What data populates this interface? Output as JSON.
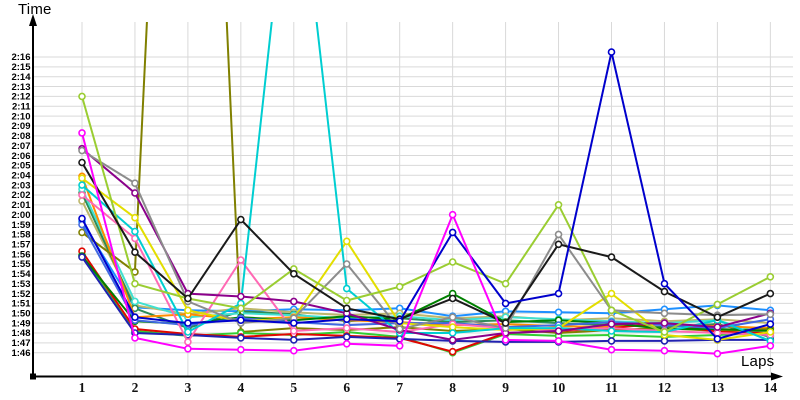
{
  "titles": {
    "y_axis": "Time",
    "x_axis": "Laps"
  },
  "chart_data": {
    "type": "line",
    "title": "",
    "xlabel": "Laps",
    "ylabel": "Time",
    "x": [
      1,
      2,
      3,
      4,
      5,
      6,
      7,
      8,
      9,
      10,
      11,
      12,
      13,
      14
    ],
    "x_tick_labels": [
      "1",
      "2",
      "3",
      "4",
      "5",
      "6",
      "7",
      "8",
      "9",
      "10",
      "11",
      "12",
      "13",
      "14"
    ],
    "y_tick_labels": [
      "2:16",
      "2:15",
      "2:14",
      "2:13",
      "2:12",
      "2:11",
      "2:10",
      "2:09",
      "2:08",
      "2:07",
      "2:06",
      "2:05",
      "2:04",
      "2:03",
      "2:02",
      "2:01",
      "2:00",
      "1:59",
      "1:58",
      "1:57",
      "1:56",
      "1:55",
      "1:54",
      "1:53",
      "1:52",
      "1:51",
      "1:50",
      "1:49",
      "1:48",
      "1:47",
      "1:46"
    ],
    "y_axis": {
      "min_label": "1:46",
      "max_label": "2:16",
      "min_seconds": 106,
      "max_seconds": 136,
      "tick_step_seconds": 1,
      "grid": true
    },
    "values_unit": "lap time in seconds (e.g. 106.3 = 1:46.3); values above 136 run off the top of the chart",
    "layout": {
      "background": "#FFFFFF",
      "grid_color": "#D9D9D9",
      "axis_color": "#000000",
      "marker_fill": "#FFFFFF",
      "legend": "none"
    },
    "series": [
      {
        "name": "dodger-blue",
        "color": "#1E90FF",
        "values": [
          119.3,
          110.6,
          110.3,
          110.2,
          110.4,
          110.3,
          110.5,
          109.7,
          110.2,
          110.1,
          110.0,
          110.4,
          110.8,
          110.3
        ]
      },
      {
        "name": "dark-khaki",
        "color": "#BDB76B",
        "values": [
          121.4,
          110.8,
          109.9,
          110.5,
          110.1,
          109.8,
          110.0,
          109.5,
          109.7,
          109.3,
          109.5,
          109.2,
          109.4,
          109.0
        ]
      },
      {
        "name": "sea-green",
        "color": "#2E8B57",
        "values": [
          122.2,
          110.5,
          108.5,
          110.2,
          109.9,
          109.2,
          109.5,
          109.1,
          109.3,
          109.0,
          108.8,
          108.6,
          108.9,
          107.6
        ]
      },
      {
        "name": "turquoise",
        "color": "#40E0D0",
        "values": [
          122.6,
          111.2,
          109.6,
          110.0,
          109.8,
          109.5,
          109.7,
          109.3,
          109.6,
          109.4,
          109.2,
          109.0,
          109.3,
          107.7
        ]
      },
      {
        "name": "orange",
        "color": "#FF8C00",
        "values": [
          123.9,
          109.6,
          109.9,
          109.4,
          109.6,
          109.3,
          109.1,
          108.8,
          108.9,
          108.7,
          108.6,
          108.9,
          108.7,
          108.5
        ]
      },
      {
        "name": "olive",
        "color": "#808000",
        "values": [
          118.2,
          114.2,
          226.0,
          108.1,
          108.5,
          108.3,
          108.6,
          108.2,
          108.4,
          108.0,
          108.3,
          108.5,
          108.2,
          108.4
        ]
      },
      {
        "name": "lime-green",
        "color": "#32CD32",
        "values": [
          115.9,
          108.2,
          107.7,
          108.0,
          107.8,
          108.1,
          107.6,
          106.0,
          107.9,
          107.7,
          107.8,
          107.6,
          107.8,
          108.0
        ]
      },
      {
        "name": "red",
        "color": "#E10600",
        "values": [
          116.3,
          108.4,
          107.9,
          107.6,
          107.9,
          107.7,
          107.5,
          106.1,
          108.0,
          108.2,
          108.5,
          109.0,
          108.1,
          108.0
        ]
      },
      {
        "name": "green",
        "color": "#008000",
        "values": [
          115.8,
          109.2,
          108.9,
          109.6,
          109.3,
          109.7,
          109.4,
          112.0,
          109.1,
          109.3,
          109.0,
          108.4,
          108.4,
          108.2
        ]
      },
      {
        "name": "royal-blue",
        "color": "#4169E1",
        "values": [
          119.0,
          109.3,
          108.8,
          109.5,
          109.1,
          108.8,
          109.0,
          109.0,
          108.6,
          108.8,
          109.1,
          108.8,
          108.5,
          109.4
        ]
      },
      {
        "name": "navy-blue",
        "color": "#2121B0",
        "values": [
          115.7,
          108.0,
          107.8,
          107.5,
          107.3,
          107.6,
          107.4,
          107.2,
          107.1,
          107.1,
          107.2,
          107.2,
          107.3,
          107.3
        ]
      },
      {
        "name": "pink",
        "color": "#FF69B4",
        "values": [
          122.0,
          117.6,
          107.1,
          115.4,
          108.2,
          108.5,
          108.1,
          108.9,
          108.5,
          108.3,
          108.5,
          108.2,
          108.0,
          107.8
        ]
      },
      {
        "name": "yellow",
        "color": "#E3DE00",
        "values": [
          123.7,
          119.7,
          110.3,
          109.2,
          109.5,
          117.3,
          109.0,
          108.6,
          108.3,
          108.5,
          112.0,
          107.8,
          107.3,
          108.1
        ]
      },
      {
        "name": "cyan",
        "color": "#00CED1",
        "values": [
          123.0,
          118.3,
          108.1,
          111.0,
          160.0,
          112.5,
          108.0,
          108.0,
          108.5,
          108.5,
          108.2,
          108.1,
          109.3,
          107.2
        ]
      },
      {
        "name": "purple",
        "color": "#8B008B",
        "values": [
          126.7,
          122.2,
          112.0,
          111.7,
          111.2,
          110.0,
          108.3,
          107.3,
          108.0,
          108.2,
          108.9,
          109.0,
          108.6,
          110.0
        ]
      },
      {
        "name": "gray",
        "color": "#8C8C8C",
        "values": [
          126.5,
          123.2,
          111.2,
          109.0,
          109.5,
          115.0,
          108.4,
          109.6,
          108.5,
          118.0,
          110.3,
          110.0,
          109.8,
          109.9
        ]
      },
      {
        "name": "light-green",
        "color": "#9ACD32",
        "values": [
          132.0,
          113.0,
          111.5,
          110.5,
          114.5,
          111.3,
          112.7,
          115.2,
          113.0,
          121.0,
          110.3,
          108.1,
          110.9,
          113.7
        ]
      },
      {
        "name": "black",
        "color": "#1A1A1A",
        "values": [
          125.3,
          116.2,
          111.5,
          119.5,
          114.0,
          110.5,
          109.4,
          111.5,
          109.0,
          117.0,
          115.7,
          112.2,
          109.6,
          112.0
        ]
      },
      {
        "name": "blue",
        "color": "#0000CC",
        "values": [
          119.6,
          109.6,
          109.0,
          109.3,
          109.0,
          109.4,
          109.2,
          118.2,
          111.0,
          112.0,
          136.5,
          113.0,
          107.4,
          108.9
        ]
      },
      {
        "name": "magenta",
        "color": "#FF00FF",
        "values": [
          128.3,
          107.5,
          106.4,
          106.3,
          106.2,
          106.9,
          106.7,
          120.0,
          107.3,
          107.2,
          106.3,
          106.2,
          105.9,
          106.7
        ]
      }
    ]
  }
}
